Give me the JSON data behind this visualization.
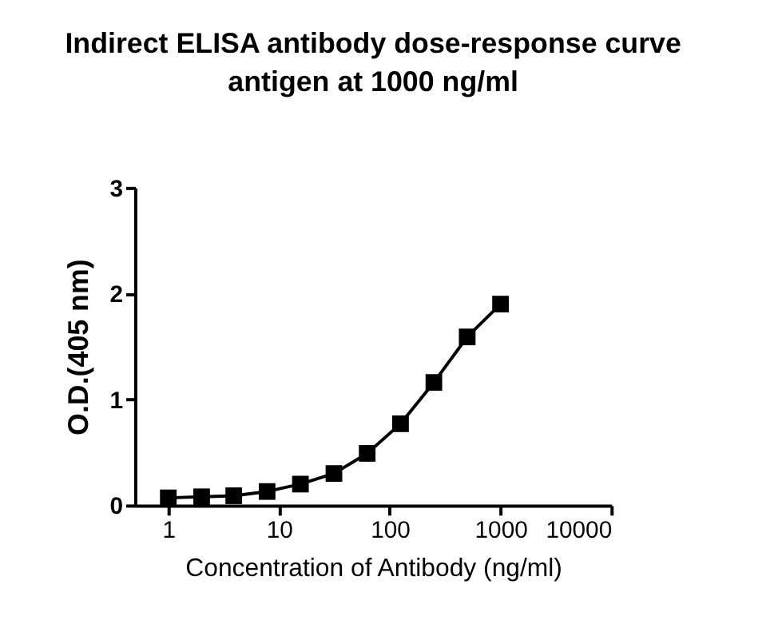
{
  "chart_data": {
    "type": "line",
    "title": "Indirect ELISA antibody dose-response curve",
    "subtitle": "antigen at 1000 ng/ml",
    "xlabel": "Concentration of Antibody (ng/ml)",
    "ylabel": "O.D.(405 nm)",
    "x": [
      1,
      2,
      3.9,
      7.8,
      15.6,
      31.3,
      62.5,
      125,
      250,
      500,
      1000
    ],
    "series": [
      {
        "color": "#000000",
        "values": [
          0.07,
          0.08,
          0.09,
          0.13,
          0.2,
          0.3,
          0.49,
          0.77,
          1.16,
          1.59,
          1.9
        ]
      }
    ],
    "log": "x",
    "xlim": [
      0.5,
      10000
    ],
    "xticks": [
      1,
      10,
      100,
      1000,
      10000
    ],
    "ylim": [
      0,
      3
    ],
    "yticks": [
      0,
      1,
      2,
      3
    ],
    "grid": false,
    "marker": "square",
    "line_style": "solid"
  }
}
